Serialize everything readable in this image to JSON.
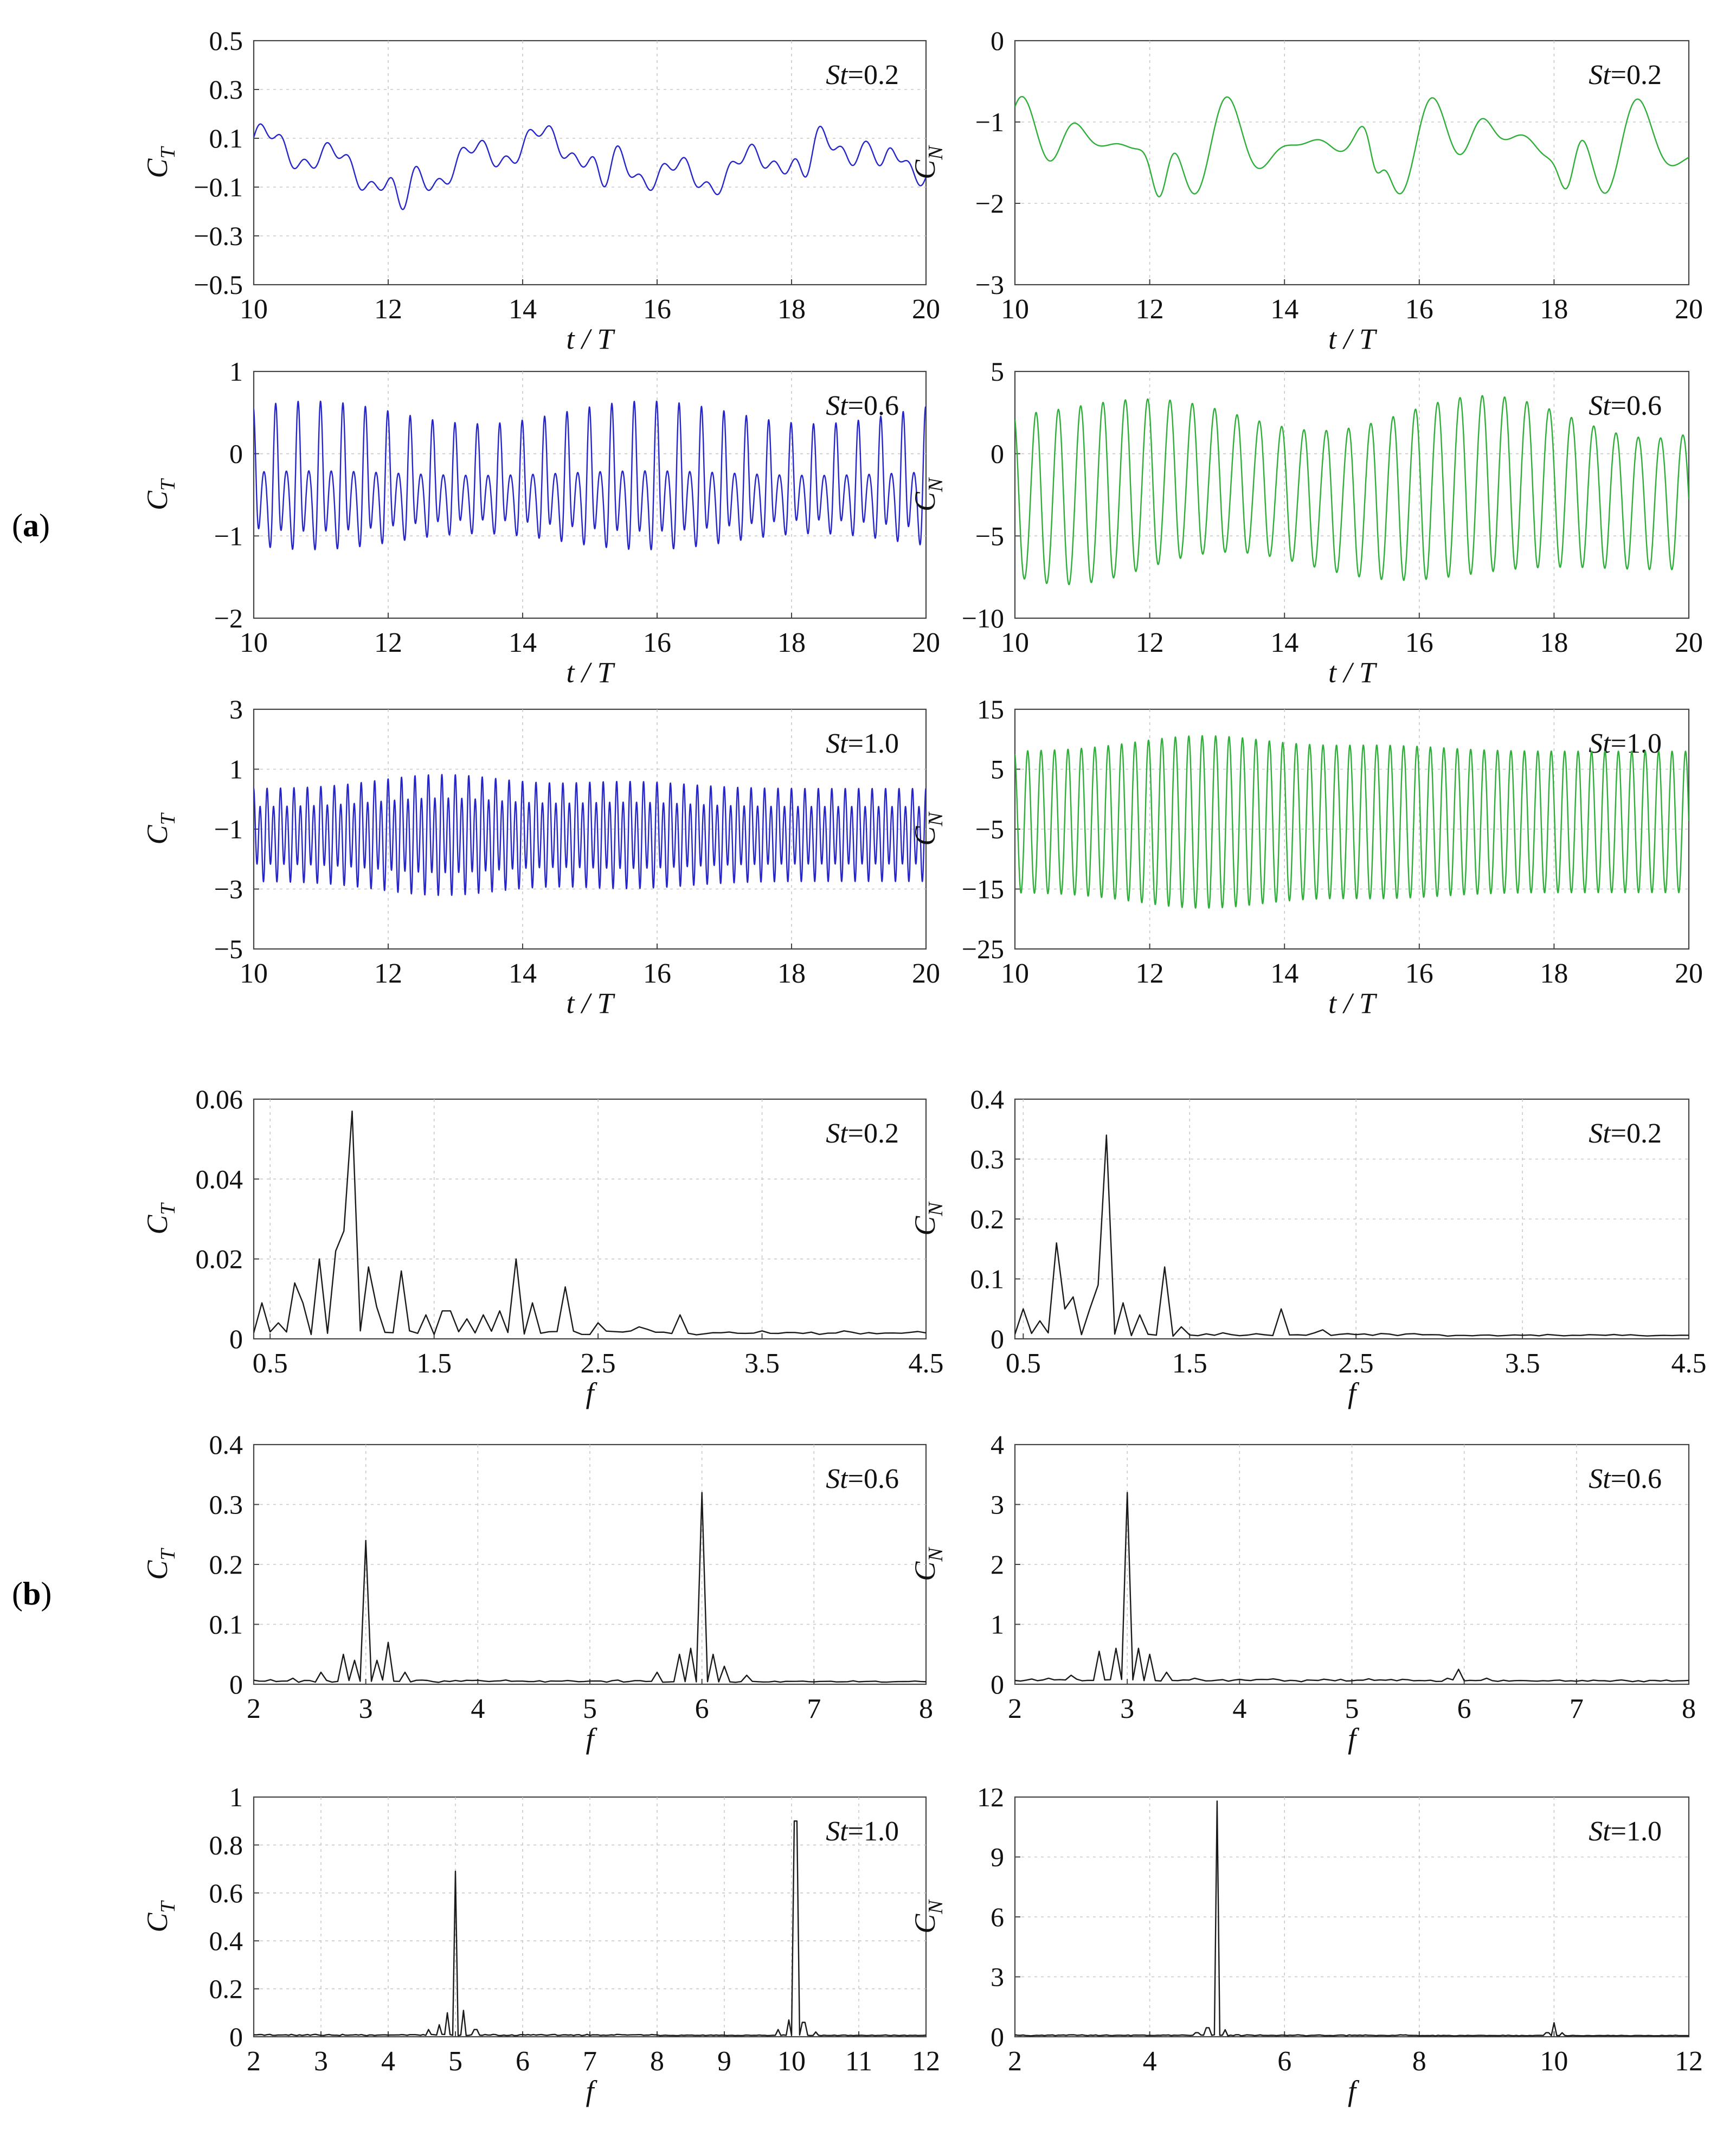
{
  "figure": {
    "panel_labels": [
      {
        "open": "(",
        "letter": "a",
        "close": ")"
      },
      {
        "open": "(",
        "letter": "b",
        "close": ")"
      }
    ],
    "series_colors": {
      "ct_time": "#2626c8",
      "cn_time": "#2fae3a",
      "spectrum": "#1a1a1a"
    }
  },
  "chart_data": [
    {
      "type": "line",
      "series": [
        {
          "name": "C_T",
          "kind": "time_ct_02"
        }
      ],
      "x_range": [
        10,
        20
      ],
      "ylim": [
        -0.5,
        0.5
      ],
      "x_ticks": [
        "10",
        "12",
        "14",
        "16",
        "18",
        "20"
      ],
      "y_ticks": [
        "-0.5",
        "-0.3",
        "-0.1",
        "0.1",
        "0.3",
        "0.5"
      ],
      "ylabel": {
        "main": "C",
        "sub": "T"
      },
      "xlabel": "t / T",
      "annotation": {
        "italic": "St",
        "rest": "=0.2"
      },
      "grid": true
    },
    {
      "type": "line",
      "series": [
        {
          "name": "C_N",
          "kind": "time_cn_02"
        }
      ],
      "x_range": [
        10,
        20
      ],
      "ylim": [
        -3,
        0
      ],
      "x_ticks": [
        "10",
        "12",
        "14",
        "16",
        "18",
        "20"
      ],
      "y_ticks": [
        "-3",
        "-2",
        "-1",
        "0"
      ],
      "ylabel": {
        "main": "C",
        "sub": "N"
      },
      "xlabel": "t / T",
      "annotation": {
        "italic": "St",
        "rest": "=0.2"
      },
      "grid": true
    },
    {
      "type": "line",
      "series": [
        {
          "name": "C_T",
          "kind": "time_ct_06"
        }
      ],
      "x_range": [
        10,
        20
      ],
      "ylim": [
        -2,
        1
      ],
      "x_ticks": [
        "10",
        "12",
        "14",
        "16",
        "18",
        "20"
      ],
      "y_ticks": [
        "-2",
        "-1",
        "0",
        "1"
      ],
      "ylabel": {
        "main": "C",
        "sub": "T"
      },
      "xlabel": "t / T",
      "annotation": {
        "italic": "St",
        "rest": "=0.6"
      },
      "grid": true
    },
    {
      "type": "line",
      "series": [
        {
          "name": "C_N",
          "kind": "time_cn_06"
        }
      ],
      "x_range": [
        10,
        20
      ],
      "ylim": [
        -10,
        5
      ],
      "x_ticks": [
        "10",
        "12",
        "14",
        "16",
        "18",
        "20"
      ],
      "y_ticks": [
        "-10",
        "-5",
        "0",
        "5"
      ],
      "ylabel": {
        "main": "C",
        "sub": "N"
      },
      "xlabel": "t / T",
      "annotation": {
        "italic": "St",
        "rest": "=0.6"
      },
      "grid": true
    },
    {
      "type": "line",
      "series": [
        {
          "name": "C_T",
          "kind": "time_ct_10"
        }
      ],
      "x_range": [
        10,
        20
      ],
      "ylim": [
        -5,
        3
      ],
      "x_ticks": [
        "10",
        "12",
        "14",
        "16",
        "18",
        "20"
      ],
      "y_ticks": [
        "-5",
        "-3",
        "-1",
        "1",
        "3"
      ],
      "ylabel": {
        "main": "C",
        "sub": "T"
      },
      "xlabel": "t / T",
      "annotation": {
        "italic": "St",
        "rest": "=1.0"
      },
      "grid": true
    },
    {
      "type": "line",
      "series": [
        {
          "name": "C_N",
          "kind": "time_cn_10"
        }
      ],
      "x_range": [
        10,
        20
      ],
      "ylim": [
        -25,
        15
      ],
      "x_ticks": [
        "10",
        "12",
        "14",
        "16",
        "18",
        "20"
      ],
      "y_ticks": [
        "-25",
        "-15",
        "-5",
        "5",
        "15"
      ],
      "ylabel": {
        "main": "C",
        "sub": "N"
      },
      "xlabel": "t / T",
      "annotation": {
        "italic": "St",
        "rest": "=1.0"
      },
      "grid": true
    },
    {
      "type": "line",
      "series": [
        {
          "name": "C_T spectrum",
          "kind": "spec",
          "baseline": 0.001,
          "noise": 0.0008,
          "x_step": 0.05,
          "peaks": [
            [
              0.45,
              0.009
            ],
            [
              0.55,
              0.004
            ],
            [
              0.65,
              0.014
            ],
            [
              0.72,
              0.009
            ],
            [
              0.8,
              0.02
            ],
            [
              0.88,
              0.022
            ],
            [
              0.94,
              0.027
            ],
            [
              1.0,
              0.057
            ],
            [
              1.08,
              0.018
            ],
            [
              1.15,
              0.008
            ],
            [
              1.3,
              0.017
            ],
            [
              1.45,
              0.006
            ],
            [
              1.55,
              0.007
            ],
            [
              1.62,
              0.007
            ],
            [
              1.72,
              0.005
            ],
            [
              1.8,
              0.006
            ],
            [
              1.9,
              0.007
            ],
            [
              2.0,
              0.02
            ],
            [
              2.1,
              0.009
            ],
            [
              2.28,
              0.013
            ],
            [
              2.48,
              0.004
            ],
            [
              2.75,
              0.003
            ],
            [
              3.0,
              0.006
            ],
            [
              3.5,
              0.002
            ],
            [
              4.0,
              0.002
            ],
            [
              4.4,
              0.001
            ]
          ]
        }
      ],
      "x_range": [
        0.4,
        4.5
      ],
      "ylim": [
        0,
        0.06
      ],
      "x_ticks": [
        "0.5",
        "1.5",
        "2.5",
        "3.5",
        "4.5"
      ],
      "y_ticks": [
        "0",
        "0.02",
        "0.04",
        "0.06"
      ],
      "ylabel": {
        "main": "C",
        "sub": "T"
      },
      "xlabel": "f",
      "annotation": {
        "italic": "St",
        "rest": "=0.2"
      },
      "grid": true
    },
    {
      "type": "line",
      "series": [
        {
          "name": "C_N spectrum",
          "kind": "spec",
          "baseline": 0.004,
          "noise": 0.004,
          "x_step": 0.05,
          "peaks": [
            [
              0.5,
              0.05
            ],
            [
              0.58,
              0.03
            ],
            [
              0.68,
              0.16
            ],
            [
              0.75,
              0.05
            ],
            [
              0.82,
              0.07
            ],
            [
              0.9,
              0.05
            ],
            [
              0.95,
              0.09
            ],
            [
              1.02,
              0.34
            ],
            [
              1.12,
              0.06
            ],
            [
              1.22,
              0.04
            ],
            [
              1.35,
              0.12
            ],
            [
              1.45,
              0.02
            ],
            [
              1.7,
              0.01
            ],
            [
              2.05,
              0.05
            ],
            [
              2.3,
              0.015
            ],
            [
              2.7,
              0.008
            ],
            [
              3.2,
              0.004
            ]
          ]
        }
      ],
      "x_range": [
        0.45,
        4.5
      ],
      "ylim": [
        0,
        0.4
      ],
      "x_ticks": [
        "0.5",
        "1.5",
        "2.5",
        "3.5",
        "4.5"
      ],
      "y_ticks": [
        "0",
        "0.1",
        "0.2",
        "0.3",
        "0.4"
      ],
      "ylabel": {
        "main": "C",
        "sub": "N"
      },
      "xlabel": "f",
      "annotation": {
        "italic": "St",
        "rest": "=0.2"
      },
      "grid": true
    },
    {
      "type": "line",
      "series": [
        {
          "name": "C_T spectrum",
          "kind": "spec",
          "baseline": 0.003,
          "noise": 0.003,
          "x_step": 0.05,
          "peaks": [
            [
              2.35,
              0.01
            ],
            [
              2.6,
              0.02
            ],
            [
              2.8,
              0.05
            ],
            [
              2.9,
              0.04
            ],
            [
              3.02,
              0.24
            ],
            [
              3.12,
              0.04
            ],
            [
              3.22,
              0.07
            ],
            [
              3.35,
              0.02
            ],
            [
              5.6,
              0.02
            ],
            [
              5.8,
              0.05
            ],
            [
              5.9,
              0.06
            ],
            [
              6.0,
              0.32
            ],
            [
              6.1,
              0.05
            ],
            [
              6.22,
              0.03
            ],
            [
              6.4,
              0.015
            ]
          ]
        }
      ],
      "x_range": [
        2,
        8
      ],
      "ylim": [
        0,
        0.4
      ],
      "x_ticks": [
        "2",
        "3",
        "4",
        "5",
        "6",
        "7",
        "8"
      ],
      "y_ticks": [
        "0",
        "0.1",
        "0.2",
        "0.3",
        "0.4"
      ],
      "ylabel": {
        "main": "C",
        "sub": "T"
      },
      "xlabel": "f",
      "annotation": {
        "italic": "St",
        "rest": "=0.6"
      },
      "grid": true
    },
    {
      "type": "line",
      "series": [
        {
          "name": "C_N spectrum",
          "kind": "spec",
          "baseline": 0.04,
          "noise": 0.03,
          "x_step": 0.05,
          "peaks": [
            [
              2.3,
              0.1
            ],
            [
              2.5,
              0.15
            ],
            [
              2.75,
              0.55
            ],
            [
              2.9,
              0.6
            ],
            [
              3.02,
              3.2
            ],
            [
              3.12,
              0.6
            ],
            [
              3.22,
              0.5
            ],
            [
              3.35,
              0.2
            ],
            [
              3.6,
              0.1
            ],
            [
              5.85,
              0.1
            ],
            [
              5.95,
              0.25
            ],
            [
              6.2,
              0.1
            ]
          ]
        }
      ],
      "x_range": [
        2,
        8
      ],
      "ylim": [
        0,
        4
      ],
      "x_ticks": [
        "2",
        "3",
        "4",
        "5",
        "6",
        "7",
        "8"
      ],
      "y_ticks": [
        "0",
        "1",
        "2",
        "3",
        "4"
      ],
      "ylabel": {
        "main": "C",
        "sub": "N"
      },
      "xlabel": "f",
      "annotation": {
        "italic": "St",
        "rest": "=0.6"
      },
      "grid": true
    },
    {
      "type": "line",
      "series": [
        {
          "name": "C_T spectrum",
          "kind": "spec",
          "baseline": 0.004,
          "noise": 0.004,
          "x_step": 0.04,
          "peaks": [
            [
              4.6,
              0.03
            ],
            [
              4.76,
              0.05
            ],
            [
              4.88,
              0.1
            ],
            [
              5.0,
              0.69
            ],
            [
              5.12,
              0.11
            ],
            [
              5.3,
              0.03
            ],
            [
              9.8,
              0.03
            ],
            [
              9.95,
              0.07
            ],
            [
              10.06,
              0.9
            ],
            [
              10.18,
              0.06
            ],
            [
              10.35,
              0.02
            ]
          ]
        }
      ],
      "x_range": [
        2,
        12
      ],
      "ylim": [
        0,
        1
      ],
      "x_ticks": [
        "2",
        "3",
        "4",
        "5",
        "6",
        "7",
        "8",
        "9",
        "10",
        "11",
        "12"
      ],
      "y_ticks": [
        "0",
        "0.2",
        "0.4",
        "0.6",
        "0.8",
        "1"
      ],
      "ylabel": {
        "main": "C",
        "sub": "T"
      },
      "xlabel": "f",
      "annotation": {
        "italic": "St",
        "rest": "=1.0"
      },
      "grid": true
    },
    {
      "type": "line",
      "series": [
        {
          "name": "C_N spectrum",
          "kind": "spec",
          "baseline": 0.04,
          "noise": 0.04,
          "x_step": 0.04,
          "peaks": [
            [
              4.7,
              0.2
            ],
            [
              4.86,
              0.45
            ],
            [
              5.0,
              11.8
            ],
            [
              5.12,
              0.35
            ],
            [
              5.3,
              0.1
            ],
            [
              9.9,
              0.2
            ],
            [
              10.0,
              0.7
            ],
            [
              10.12,
              0.2
            ]
          ]
        }
      ],
      "x_range": [
        2,
        12
      ],
      "ylim": [
        0,
        12
      ],
      "x_ticks": [
        "2",
        "4",
        "6",
        "8",
        "10",
        "12"
      ],
      "y_ticks": [
        "0",
        "3",
        "6",
        "9",
        "12"
      ],
      "ylabel": {
        "main": "C",
        "sub": "N"
      },
      "xlabel": "f",
      "annotation": {
        "italic": "St",
        "rest": "=1.0"
      },
      "grid": true
    }
  ]
}
